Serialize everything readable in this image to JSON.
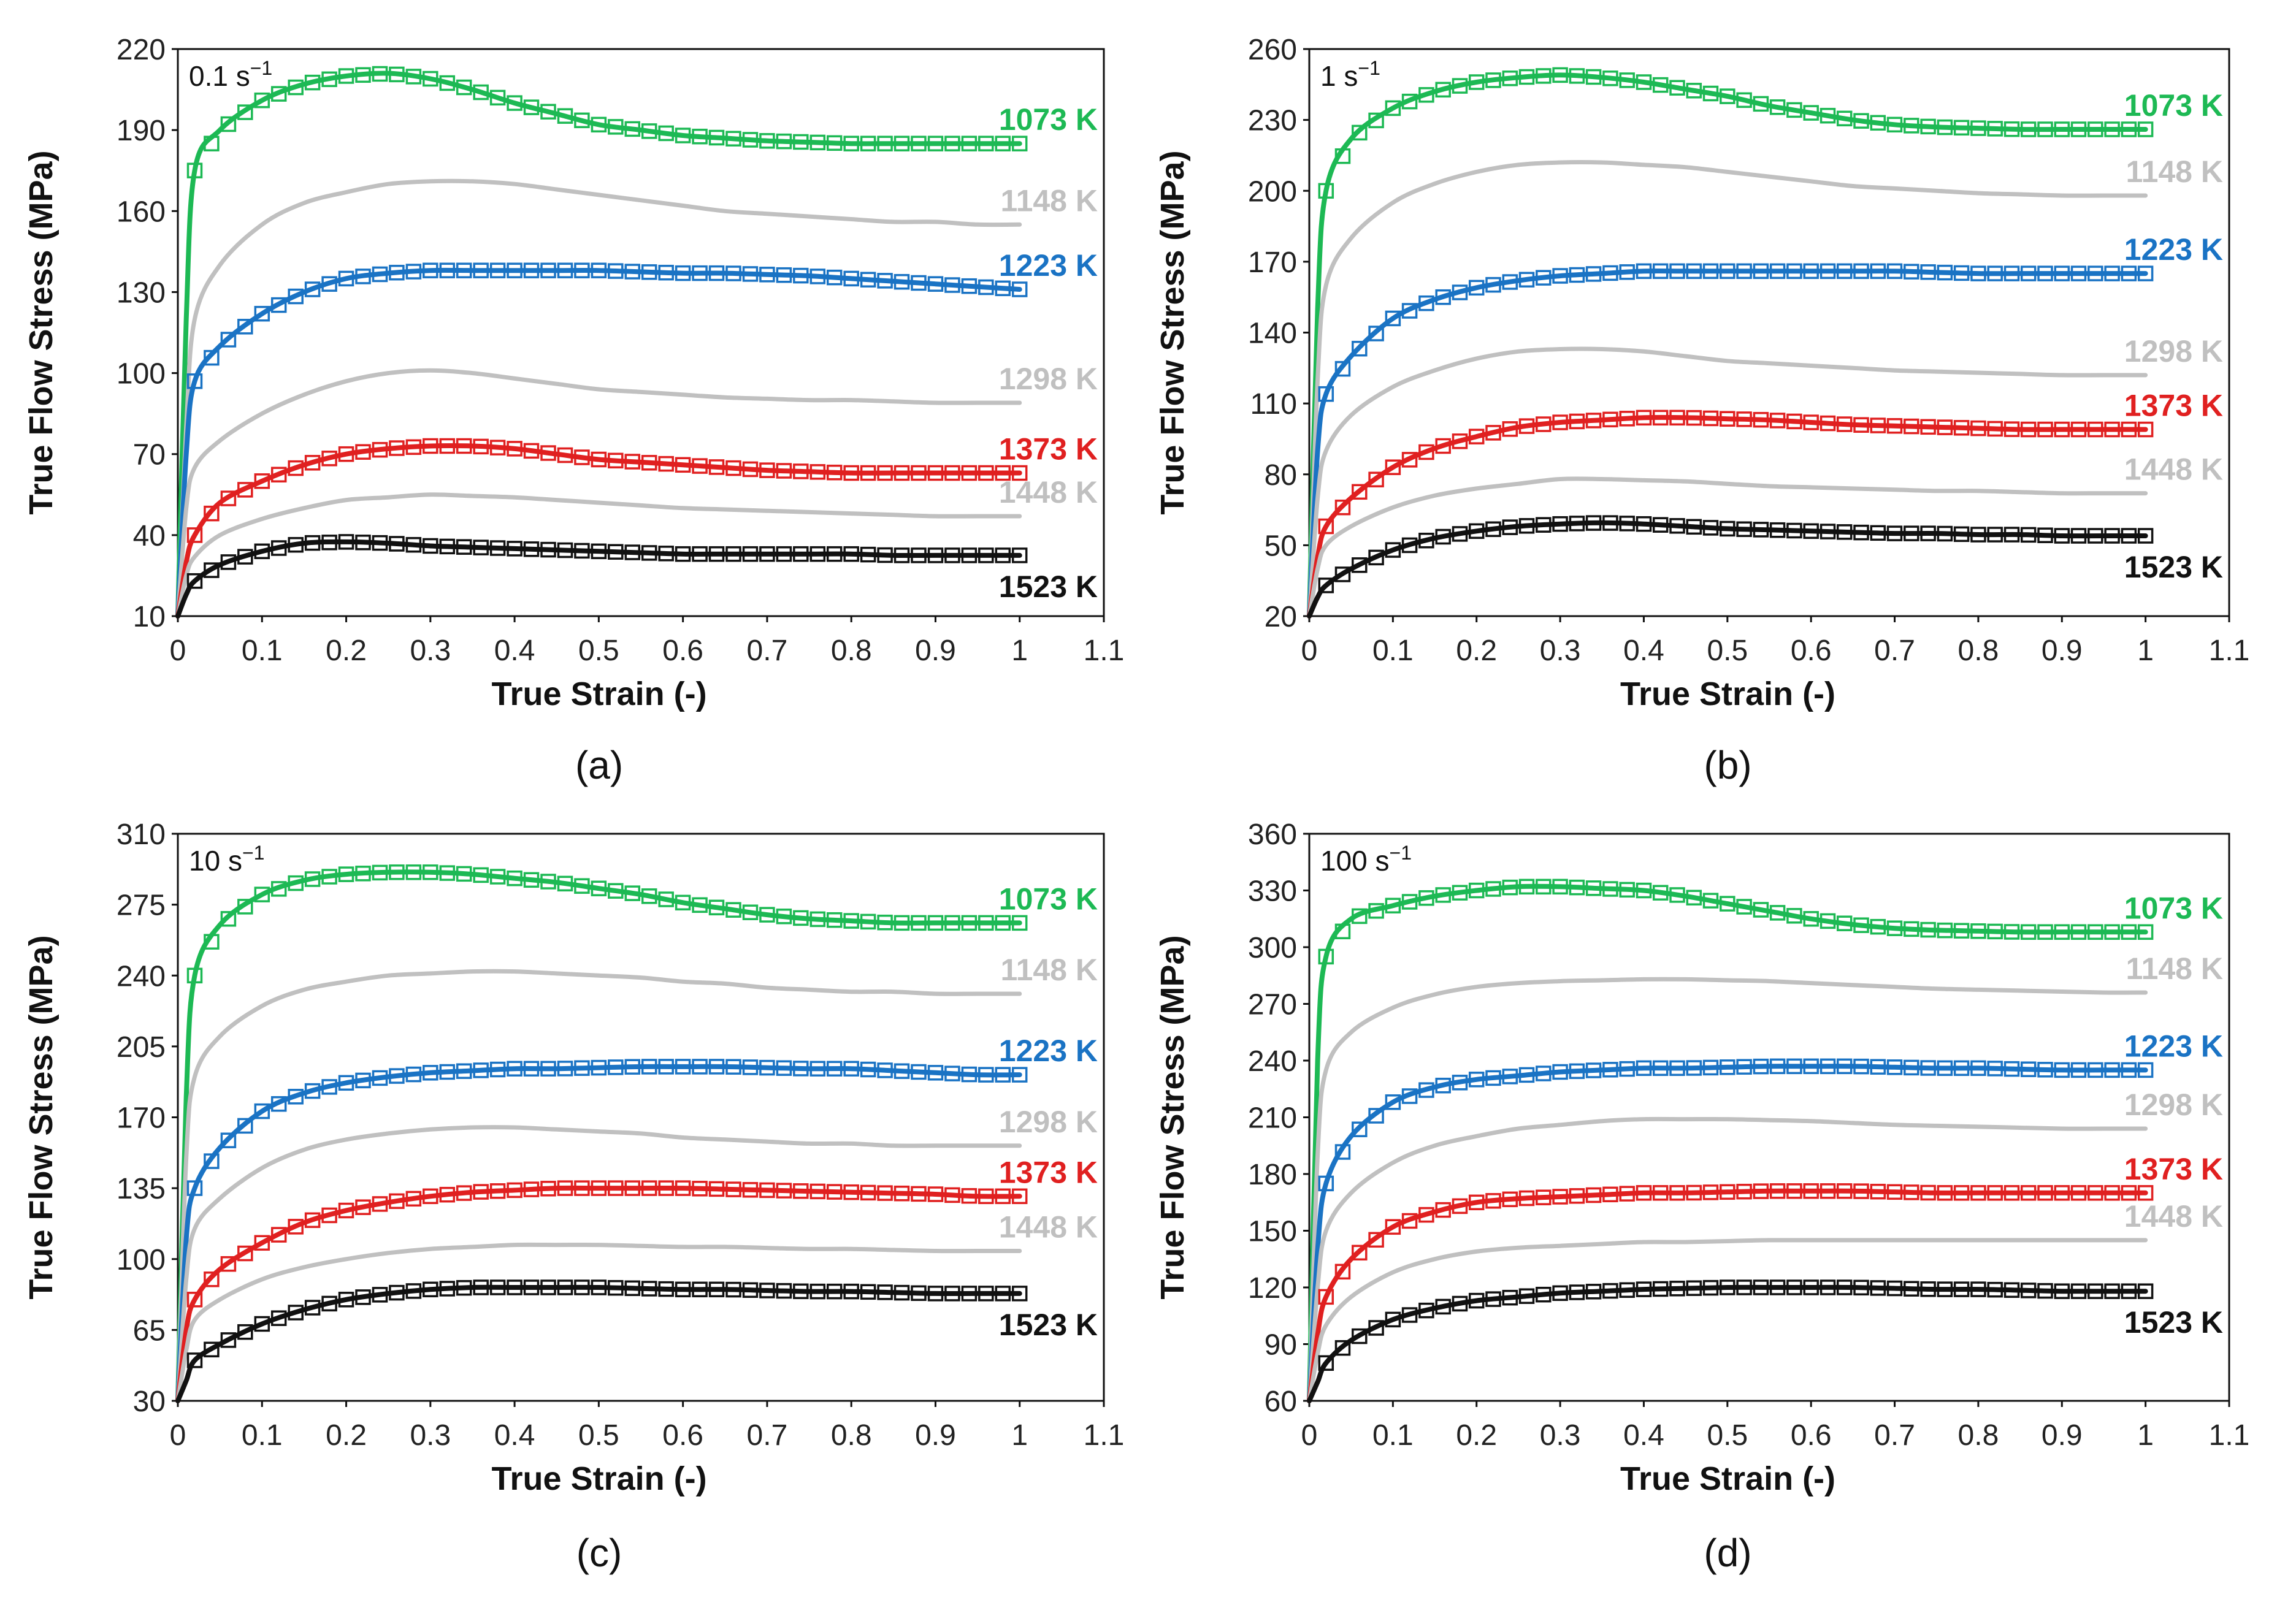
{
  "figure": {
    "colors": {
      "1073 K": "#1db954",
      "1148 K": "#c0c0c0",
      "1223 K": "#1a73c4",
      "1298 K": "#c0c0c0",
      "1373 K": "#e02020",
      "1448 K": "#c0c0c0",
      "1523 K": "#111111"
    }
  },
  "chart_data": [
    {
      "type": "line",
      "panel": "(a)",
      "rate_label": "0.1 s",
      "rate_exp": "−1",
      "xlabel": "True Strain (-)",
      "ylabel": "True Flow Stress (MPa)",
      "xlim": [
        0,
        1.1
      ],
      "ylim": [
        10,
        220
      ],
      "xticks": [
        0,
        0.1,
        0.2,
        0.3,
        0.4,
        0.5,
        0.6,
        0.7,
        0.8,
        0.9,
        1,
        1.1
      ],
      "yticks": [
        10,
        40,
        70,
        100,
        130,
        160,
        190,
        220
      ],
      "x": [
        0,
        0.01,
        0.02,
        0.05,
        0.1,
        0.15,
        0.2,
        0.25,
        0.3,
        0.35,
        0.4,
        0.45,
        0.5,
        0.55,
        0.6,
        0.65,
        0.7,
        0.75,
        0.8,
        0.85,
        0.9,
        0.95,
        1.0
      ],
      "series": [
        {
          "name": "1073 K",
          "kind": "model+exp",
          "values": [
            10,
            120,
            175,
            190,
            201,
            207,
            210,
            211,
            209,
            205,
            200,
            196,
            192,
            190,
            188,
            187,
            186,
            185.5,
            185,
            185,
            185,
            185,
            185
          ]
        },
        {
          "name": "1148 K",
          "kind": "model",
          "values": [
            10,
            80,
            120,
            140,
            155,
            163,
            167,
            170,
            171,
            171,
            170,
            168,
            166,
            164,
            162,
            160,
            159,
            158,
            157,
            156,
            156,
            155,
            155
          ]
        },
        {
          "name": "1223 K",
          "kind": "model+exp",
          "values": [
            10,
            70,
            97,
            110,
            122,
            130,
            135,
            137,
            138,
            138,
            138,
            138,
            138,
            137.5,
            137,
            137,
            136.5,
            136,
            135,
            134,
            133,
            132,
            131
          ]
        },
        {
          "name": "1298 K",
          "kind": "model",
          "values": [
            10,
            50,
            65,
            75,
            85,
            92,
            97,
            100,
            101,
            100,
            98,
            96,
            94,
            93,
            92,
            91,
            90.5,
            90,
            90,
            89.5,
            89,
            89,
            89
          ]
        },
        {
          "name": "1373 K",
          "kind": "model+exp",
          "values": [
            10,
            30,
            40,
            52,
            60,
            66,
            70,
            72,
            73,
            73,
            72,
            70,
            68,
            67,
            66,
            65,
            64,
            63.5,
            63,
            63,
            63,
            63,
            63
          ]
        },
        {
          "name": "1448 K",
          "kind": "model",
          "values": [
            10,
            25,
            32,
            40,
            46,
            50,
            53,
            54,
            55,
            54.5,
            54,
            53,
            52,
            51,
            50,
            49.5,
            49,
            48.5,
            48,
            47.5,
            47,
            47,
            47
          ]
        },
        {
          "name": "1523 K",
          "kind": "model+exp",
          "values": [
            10,
            18,
            23,
            29,
            34,
            37,
            37.5,
            37,
            36,
            35.5,
            35,
            34.5,
            34,
            33.5,
            33,
            33,
            33,
            33,
            33,
            32.5,
            32.5,
            32.5,
            32.5
          ]
        }
      ]
    },
    {
      "type": "line",
      "panel": "(b)",
      "rate_label": "1 s",
      "rate_exp": "−1",
      "xlabel": "True Strain (-)",
      "ylabel": "True Flow Stress (MPa)",
      "xlim": [
        0,
        1.1
      ],
      "ylim": [
        20,
        260
      ],
      "xticks": [
        0,
        0.1,
        0.2,
        0.3,
        0.4,
        0.5,
        0.6,
        0.7,
        0.8,
        0.9,
        1,
        1.1
      ],
      "yticks": [
        20,
        50,
        80,
        110,
        140,
        170,
        200,
        230,
        260
      ],
      "x": [
        0,
        0.01,
        0.02,
        0.05,
        0.1,
        0.15,
        0.2,
        0.25,
        0.3,
        0.35,
        0.4,
        0.45,
        0.5,
        0.55,
        0.6,
        0.65,
        0.7,
        0.75,
        0.8,
        0.85,
        0.9,
        0.95,
        1.0
      ],
      "series": [
        {
          "name": "1073 K",
          "kind": "model+exp",
          "values": [
            20,
            150,
            200,
            222,
            235,
            242,
            246,
            248,
            249,
            248,
            246,
            243,
            240,
            236,
            233,
            230,
            228,
            227,
            226.5,
            226,
            226,
            226,
            226
          ]
        },
        {
          "name": "1148 K",
          "kind": "model",
          "values": [
            20,
            120,
            160,
            180,
            195,
            203,
            208,
            211,
            212,
            212,
            211,
            210,
            208,
            206,
            204,
            202,
            201,
            200,
            199,
            198.5,
            198,
            198,
            198
          ]
        },
        {
          "name": "1223 K",
          "kind": "model+exp",
          "values": [
            20,
            90,
            114,
            130,
            146,
            154,
            159,
            162,
            164,
            165,
            166,
            166,
            166,
            166,
            166,
            166,
            166,
            165.5,
            165,
            165,
            165,
            165,
            165
          ]
        },
        {
          "name": "1298 K",
          "kind": "model",
          "values": [
            20,
            70,
            90,
            105,
            117,
            124,
            129,
            132,
            133,
            133,
            132,
            130,
            128,
            127,
            126,
            125,
            124,
            123.5,
            123,
            122.5,
            122,
            122,
            122
          ]
        },
        {
          "name": "1373 K",
          "kind": "model+exp",
          "values": [
            20,
            45,
            58,
            70,
            83,
            91,
            96,
            100,
            102,
            103,
            104,
            104,
            103.5,
            103,
            102,
            101,
            100.5,
            100,
            99.5,
            99,
            99,
            99,
            99
          ]
        },
        {
          "name": "1448 K",
          "kind": "model",
          "values": [
            20,
            40,
            50,
            58,
            66,
            71,
            74,
            76,
            78,
            78,
            77.5,
            77,
            76,
            75,
            74.5,
            74,
            73.5,
            73,
            73,
            72.5,
            72,
            72,
            72
          ]
        },
        {
          "name": "1523 K",
          "kind": "model+exp",
          "values": [
            20,
            28,
            33,
            40,
            48,
            53,
            56,
            58,
            59,
            59.5,
            59,
            58,
            57,
            56.5,
            56,
            55.5,
            55,
            55,
            54.5,
            54.5,
            54,
            54,
            54
          ]
        }
      ]
    },
    {
      "type": "line",
      "panel": "(c)",
      "rate_label": "10 s",
      "rate_exp": "−1",
      "xlabel": "True Strain (-)",
      "ylabel": "True Flow Stress (MPa)",
      "xlim": [
        0,
        1.1
      ],
      "ylim": [
        30,
        310
      ],
      "xticks": [
        0,
        0.1,
        0.2,
        0.3,
        0.4,
        0.5,
        0.6,
        0.7,
        0.8,
        0.9,
        1,
        1.1
      ],
      "yticks": [
        30,
        65,
        100,
        135,
        170,
        205,
        240,
        275,
        310
      ],
      "x": [
        0,
        0.01,
        0.02,
        0.05,
        0.1,
        0.15,
        0.2,
        0.25,
        0.3,
        0.35,
        0.4,
        0.45,
        0.5,
        0.55,
        0.6,
        0.65,
        0.7,
        0.75,
        0.8,
        0.85,
        0.9,
        0.95,
        1.0
      ],
      "series": [
        {
          "name": "1073 K",
          "kind": "model+exp",
          "values": [
            30,
            180,
            240,
            265,
            280,
            287,
            290,
            291,
            291,
            290,
            288,
            286,
            283,
            280,
            276,
            273,
            270,
            268,
            267,
            266,
            266,
            266,
            266
          ]
        },
        {
          "name": "1148 K",
          "kind": "model",
          "values": [
            30,
            150,
            190,
            210,
            225,
            233,
            237,
            240,
            241,
            242,
            242,
            241,
            240,
            239,
            237,
            236,
            234,
            233,
            232,
            232,
            231,
            231,
            231
          ]
        },
        {
          "name": "1223 K",
          "kind": "model+exp",
          "values": [
            30,
            110,
            135,
            155,
            173,
            182,
            187,
            190,
            192,
            193,
            194,
            194,
            194.5,
            195,
            195,
            195,
            194.5,
            194,
            194,
            193,
            192,
            191,
            191
          ]
        },
        {
          "name": "1298 K",
          "kind": "model",
          "values": [
            30,
            90,
            115,
            130,
            145,
            154,
            159,
            162,
            164,
            165,
            165,
            164,
            163,
            162,
            160,
            159,
            158,
            157,
            157,
            156,
            156,
            156,
            156
          ]
        },
        {
          "name": "1373 K",
          "kind": "model+exp",
          "values": [
            30,
            65,
            80,
            95,
            108,
            118,
            124,
            128,
            131,
            133,
            134,
            135,
            135,
            135,
            135,
            134.5,
            134,
            133.5,
            133,
            132.5,
            132,
            131,
            131
          ]
        },
        {
          "name": "1448 K",
          "kind": "model",
          "values": [
            30,
            55,
            70,
            80,
            90,
            96,
            100,
            103,
            105,
            106,
            107,
            107,
            107,
            106.5,
            106,
            106,
            105.5,
            105,
            105,
            104.5,
            104,
            104,
            104
          ]
        },
        {
          "name": "1523 K",
          "kind": "model+exp",
          "values": [
            30,
            40,
            50,
            58,
            68,
            75,
            80,
            83,
            85,
            86,
            86,
            86,
            86,
            85.5,
            85,
            85,
            84.5,
            84,
            84,
            83.5,
            83,
            83,
            83
          ]
        }
      ]
    },
    {
      "type": "line",
      "panel": "(d)",
      "rate_label": "100 s",
      "rate_exp": "−1",
      "xlabel": "True Strain (-)",
      "ylabel": "True Flow Stress (MPa)",
      "xlim": [
        0,
        1.1
      ],
      "ylim": [
        60,
        360
      ],
      "xticks": [
        0,
        0.1,
        0.2,
        0.3,
        0.4,
        0.5,
        0.6,
        0.7,
        0.8,
        0.9,
        1,
        1.1
      ],
      "yticks": [
        60,
        90,
        120,
        150,
        180,
        210,
        240,
        270,
        300,
        330,
        360
      ],
      "x": [
        0,
        0.01,
        0.02,
        0.05,
        0.1,
        0.15,
        0.2,
        0.25,
        0.3,
        0.35,
        0.4,
        0.45,
        0.5,
        0.55,
        0.6,
        0.65,
        0.7,
        0.75,
        0.8,
        0.85,
        0.9,
        0.95,
        1.0
      ],
      "series": [
        {
          "name": "1073 K",
          "kind": "model+exp",
          "values": [
            60,
            240,
            295,
            315,
            322,
            327,
            330,
            332,
            332,
            331,
            330,
            327,
            323,
            319,
            315,
            312,
            310,
            309,
            308.5,
            308,
            308,
            308,
            308
          ]
        },
        {
          "name": "1148 K",
          "kind": "model",
          "values": [
            60,
            190,
            235,
            255,
            268,
            275,
            279,
            281,
            282,
            282.5,
            283,
            283,
            282.5,
            282,
            281,
            280,
            279,
            278,
            277.5,
            277,
            276.5,
            276,
            276
          ]
        },
        {
          "name": "1223 K",
          "kind": "model+exp",
          "values": [
            60,
            140,
            175,
            200,
            218,
            226,
            230,
            232,
            234,
            235,
            236,
            236,
            236.5,
            237,
            237,
            237,
            236.5,
            236,
            236,
            235.5,
            235,
            235,
            235
          ]
        },
        {
          "name": "1298 K",
          "kind": "model",
          "values": [
            60,
            120,
            150,
            170,
            186,
            195,
            200,
            204,
            206,
            208,
            209,
            209,
            209,
            208.5,
            208,
            207,
            206,
            205.5,
            205,
            204.5,
            204,
            204,
            204
          ]
        },
        {
          "name": "1373 K",
          "kind": "model+exp",
          "values": [
            60,
            95,
            115,
            135,
            152,
            160,
            165,
            167,
            168,
            169,
            170,
            170,
            170.5,
            171,
            171,
            171,
            170.5,
            170,
            170,
            170,
            170,
            170,
            170
          ]
        },
        {
          "name": "1448 K",
          "kind": "model",
          "values": [
            60,
            85,
            100,
            115,
            128,
            135,
            139,
            141,
            142,
            143,
            144,
            144,
            144.5,
            145,
            145,
            145,
            145,
            145,
            145,
            145,
            145,
            145,
            145
          ]
        },
        {
          "name": "1523 K",
          "kind": "model+exp",
          "values": [
            60,
            70,
            80,
            92,
            103,
            109,
            113,
            115,
            117,
            118,
            119,
            119.5,
            120,
            120,
            120,
            120,
            119.5,
            119,
            119,
            118.5,
            118,
            118,
            118
          ]
        }
      ]
    }
  ]
}
